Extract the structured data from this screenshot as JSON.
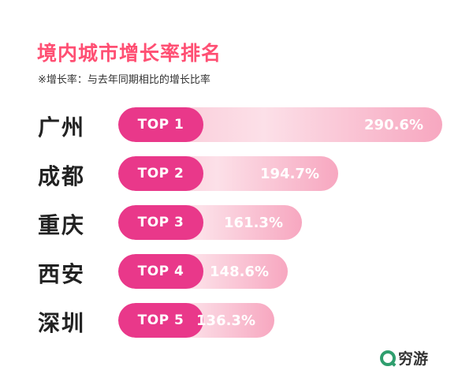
{
  "chart_data": {
    "type": "bar",
    "title": "境内城市增长率排名",
    "subtitle": "※增长率：与去年同期相比的增长比率",
    "categories": [
      "广州",
      "成都",
      "重庆",
      "西安",
      "深圳"
    ],
    "ranks": [
      "TOP 1",
      "TOP 2",
      "TOP 3",
      "TOP 4",
      "TOP 5"
    ],
    "values": [
      290.6,
      194.7,
      161.3,
      148.6,
      136.3
    ],
    "value_labels": [
      "290.6%",
      "194.7%",
      "161.3%",
      "148.6%",
      "136.3%"
    ],
    "unit": "%",
    "orientation": "horizontal"
  },
  "logo": {
    "text": "穷游"
  },
  "colors": {
    "title": "#ff4f73",
    "pill": "#e9388a",
    "bar_light": "#fce0e8",
    "bar_mid": "#f9c2d2",
    "bar_end": "#f7a7c0",
    "logo_green": "#2f9e6e"
  }
}
